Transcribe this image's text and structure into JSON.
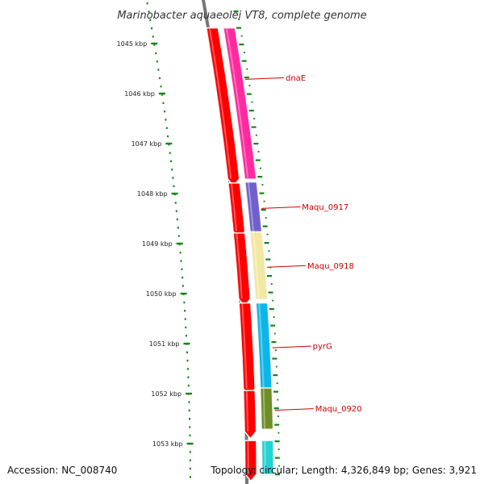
{
  "title": "Marinobacter aquaeolei VT8, complete genome",
  "footer": {
    "accession": "Accession: NC_008740",
    "topology": "Topology: circular; Length: 4,326,849 bp; Genes: 3,921"
  },
  "ticks": [
    {
      "label": "1045 kbp",
      "kbp": 1045
    },
    {
      "label": "1046 kbp",
      "kbp": 1046
    },
    {
      "label": "1047 kbp",
      "kbp": 1047
    },
    {
      "label": "1048 kbp",
      "kbp": 1048
    },
    {
      "label": "1049 kbp",
      "kbp": 1049
    },
    {
      "label": "1050 kbp",
      "kbp": 1050
    },
    {
      "label": "1051 kbp",
      "kbp": 1051
    },
    {
      "label": "1052 kbp",
      "kbp": 1052
    },
    {
      "label": "1053 kbp",
      "kbp": 1053
    }
  ],
  "genes": [
    {
      "name": "dnaE",
      "start_kbp": 1044.7,
      "end_kbp": 1047.7,
      "color": "#ff2aa0"
    },
    {
      "name": "Maqu_0917",
      "start_kbp": 1047.78,
      "end_kbp": 1048.75,
      "color": "#7060cc"
    },
    {
      "name": "Maqu_0918",
      "start_kbp": 1048.78,
      "end_kbp": 1050.1,
      "color": "#f3e8a0"
    },
    {
      "name": "pyrG",
      "start_kbp": 1050.2,
      "end_kbp": 1051.9,
      "color": "#10b6e8"
    },
    {
      "name": "Maqu_0920",
      "start_kbp": 1051.9,
      "end_kbp": 1052.7,
      "color": "#6e8e28"
    },
    {
      "name": "",
      "start_kbp": 1052.95,
      "end_kbp": 1053.6,
      "color": "#20d4d4"
    }
  ],
  "cds_red": [
    {
      "start_kbp": 1044.7,
      "end_kbp": 1047.7
    },
    {
      "start_kbp": 1047.8,
      "end_kbp": 1048.75
    },
    {
      "start_kbp": 1048.8,
      "end_kbp": 1050.1
    },
    {
      "start_kbp": 1050.2,
      "end_kbp": 1051.9
    },
    {
      "start_kbp": 1051.95,
      "end_kbp": 1052.75
    },
    {
      "start_kbp": 1052.95,
      "end_kbp": 1053.6
    }
  ],
  "colors": {
    "backbone": "#777777",
    "cds": "#ff0000",
    "gc_skew": "#118811",
    "gene_label": "#cc0000"
  }
}
